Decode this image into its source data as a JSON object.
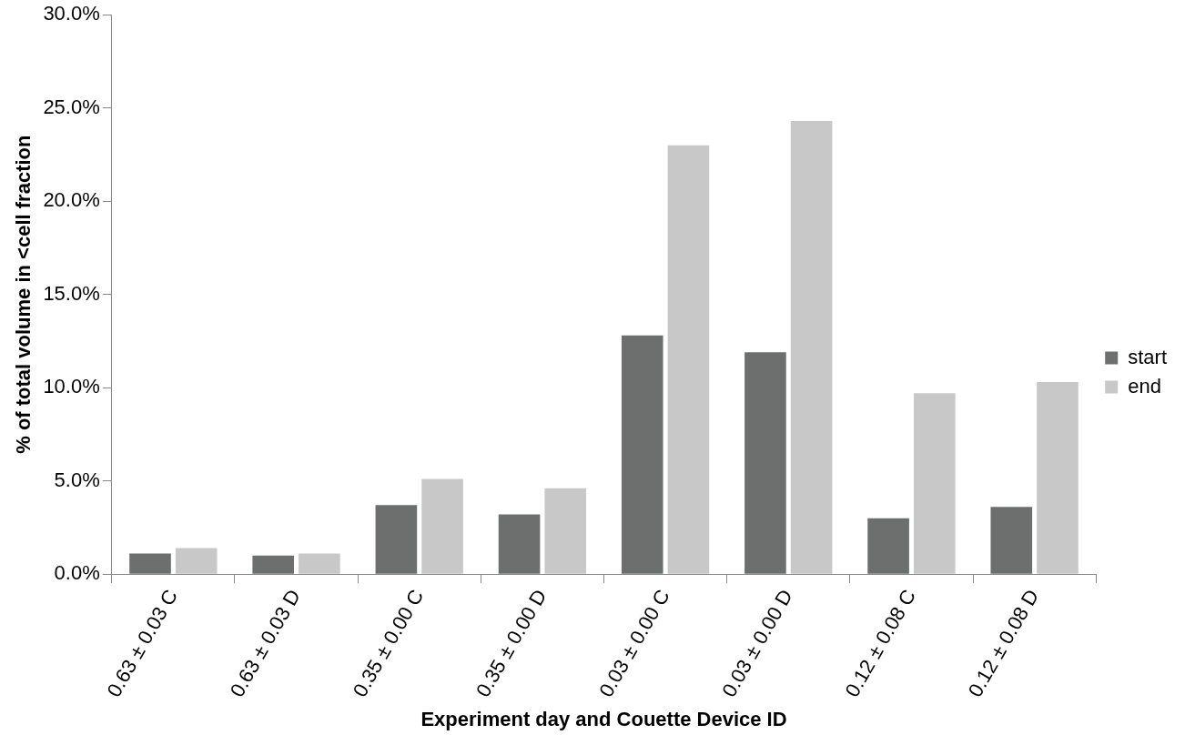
{
  "chart_data": {
    "type": "bar",
    "xlabel": "Experiment day and Couette Device ID",
    "ylabel": "% of total volume in <cell fraction",
    "categories": [
      "0.63 ± 0.03 C",
      "0.63 ± 0.03 D",
      "0.35 ± 0.00 C",
      "0.35 ± 0.00 D",
      "0.03 ± 0.00 C",
      "0.03 ± 0.00 D",
      "0.12 ± 0.08 C",
      "0.12 ± 0.08 D"
    ],
    "series": [
      {
        "name": "start",
        "color": "#6d6e6e",
        "values": [
          1.1,
          1.0,
          3.7,
          3.2,
          12.8,
          11.9,
          3.0,
          3.6
        ]
      },
      {
        "name": "end",
        "color": "#c8c8c8",
        "values": [
          1.4,
          1.1,
          5.1,
          4.6,
          23.0,
          24.3,
          9.7,
          10.3
        ]
      }
    ],
    "ylim": [
      0,
      30
    ],
    "yticks": [
      {
        "value": 0,
        "label": "0.0%"
      },
      {
        "value": 5,
        "label": "5.0%"
      },
      {
        "value": 10,
        "label": "10.0%"
      },
      {
        "value": 15,
        "label": "15.0%"
      },
      {
        "value": 20,
        "label": "20.0%"
      },
      {
        "value": 25,
        "label": "25.0%"
      },
      {
        "value": 30,
        "label": "30.0%"
      }
    ],
    "grid": false,
    "legend": "right"
  }
}
